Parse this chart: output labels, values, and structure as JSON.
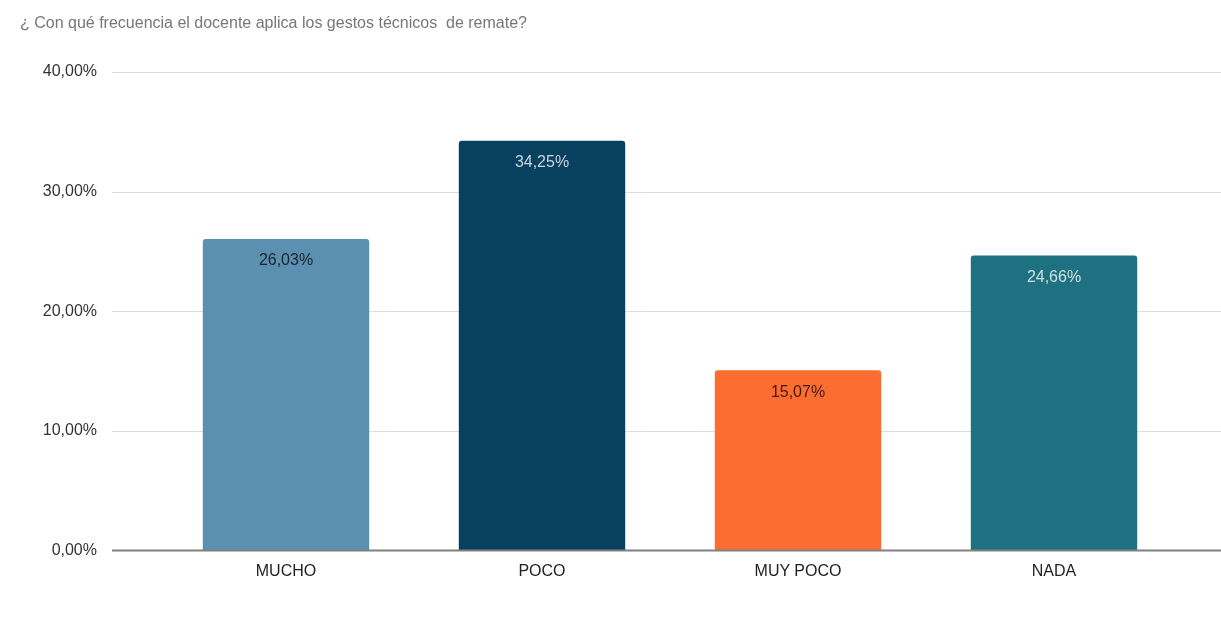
{
  "chart_data": {
    "type": "bar",
    "title": "¿ Con qué frecuencia el docente aplica los gestos técnicos  de remate?",
    "categories": [
      "MUCHO",
      "POCO",
      "MUY POCO",
      "NADA"
    ],
    "values": [
      26.03,
      34.25,
      15.07,
      24.66
    ],
    "colors": [
      "#5b90b1",
      "#08405f",
      "#fd6c30",
      "#1d7181"
    ],
    "value_labels": [
      "26,03%",
      "34,25%",
      "15,07%",
      "24,66%"
    ],
    "ylim": [
      0,
      40
    ],
    "yticks": [
      {
        "value": 0,
        "label": "0,00%"
      },
      {
        "value": 10,
        "label": "10,00%"
      },
      {
        "value": 20,
        "label": "20,00%"
      },
      {
        "value": 30,
        "label": "30,00%"
      },
      {
        "value": 40,
        "label": "40,00%"
      }
    ],
    "grid": "y"
  }
}
